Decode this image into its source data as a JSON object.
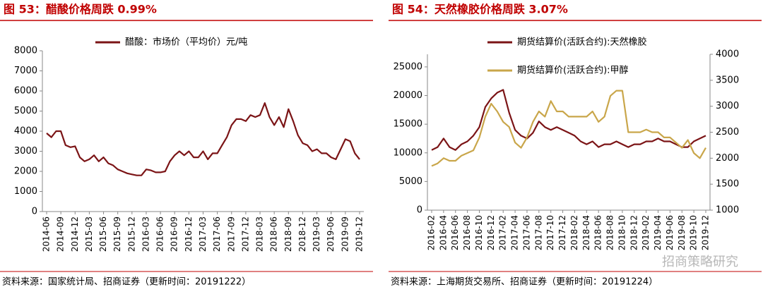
{
  "chart_data": [
    {
      "type": "line",
      "title": "图 53：醋酸价格周跌 0.99%",
      "source": "资料来源：国家统计局、招商证券（更新时间：20191222）",
      "categories": [
        "2014-06",
        null,
        null,
        "2014-09",
        null,
        null,
        "2014-12",
        null,
        null,
        "2015-03",
        null,
        null,
        "2015-06",
        null,
        null,
        "2015-09",
        null,
        null,
        "2015-12",
        null,
        null,
        "2016-03",
        null,
        null,
        "2016-06",
        null,
        null,
        "2016-09",
        null,
        null,
        "2016-12",
        null,
        null,
        "2017-03",
        null,
        null,
        "2017-06",
        null,
        null,
        "2017-09",
        null,
        null,
        "2017-12",
        null,
        null,
        "2018-03",
        null,
        null,
        "2018-06",
        null,
        null,
        "2018-09",
        null,
        null,
        "2018-12",
        null,
        null,
        "2019-03",
        null,
        null,
        "2019-06",
        null,
        null,
        "2019-09",
        null,
        null,
        "2019-12"
      ],
      "series": [
        {
          "name": "醋酸：市场价（平均价）元/吨",
          "color": "#7b1416",
          "values": [
            3900,
            3700,
            4000,
            4000,
            3300,
            3200,
            3250,
            2700,
            2500,
            2600,
            2800,
            2500,
            2700,
            2400,
            2300,
            2100,
            2000,
            1900,
            1850,
            1800,
            1800,
            2100,
            2050,
            1950,
            1950,
            2000,
            2500,
            2800,
            3000,
            2800,
            3000,
            2700,
            2700,
            3000,
            2600,
            2900,
            2900,
            3300,
            3700,
            4300,
            4600,
            4600,
            4500,
            4800,
            4700,
            4800,
            5400,
            4700,
            4300,
            4700,
            4200,
            5100,
            4500,
            3800,
            3400,
            3300,
            3000,
            3100,
            2900,
            2900,
            2700,
            2600,
            3100,
            3600,
            3500,
            2900,
            2600
          ]
        }
      ],
      "ylim": [
        0,
        8000
      ],
      "yticks": [
        0,
        1000,
        2000,
        3000,
        4000,
        5000,
        6000,
        7000,
        8000
      ],
      "grid": false
    },
    {
      "type": "line",
      "title": "图 54：天然橡胶价格周跌 3.07%",
      "source": "资料来源：上海期货交易所、招商证券（更新时间：20191224）",
      "watermark": "招商策略研究",
      "categories": [
        "2016-02",
        null,
        "2016-04",
        null,
        "2016-06",
        null,
        "2016-08",
        null,
        "2016-10",
        null,
        "2016-12",
        null,
        "2017-02",
        null,
        "2017-04",
        null,
        "2017-06",
        null,
        "2017-08",
        null,
        "2017-10",
        null,
        "2017-12",
        null,
        "2018-02",
        null,
        "2018-04",
        null,
        "2018-06",
        null,
        "2018-08",
        null,
        "2018-10",
        null,
        "2018-12",
        null,
        "2019-02",
        null,
        "2019-04",
        null,
        "2019-06",
        null,
        "2019-08",
        null,
        "2019-10",
        null,
        "2019-12"
      ],
      "series": [
        {
          "name": "期货结算价(活跃合约):天然橡胶",
          "color": "#7b1416",
          "values": [
            10500,
            11000,
            12500,
            11000,
            10500,
            11500,
            12000,
            13000,
            14500,
            18000,
            19500,
            20500,
            21000,
            17000,
            14000,
            13000,
            12500,
            13500,
            15500,
            14500,
            14000,
            14500,
            14000,
            13500,
            13000,
            12000,
            11500,
            12000,
            11000,
            11500,
            11500,
            12000,
            11500,
            11000,
            11500,
            11500,
            12000,
            12000,
            12500,
            12000,
            12000,
            11500,
            11000,
            11000,
            12000,
            12500,
            13000
          ]
        },
        {
          "name": "期货结算价(活跃合约):甲醇",
          "color": "#c9a64a",
          "axis": "y2",
          "values": [
            1850,
            1900,
            2000,
            1950,
            1950,
            2050,
            2100,
            2150,
            2400,
            2800,
            3050,
            2900,
            2700,
            2600,
            2300,
            2200,
            2400,
            2700,
            2900,
            2800,
            3100,
            2900,
            2900,
            2800,
            2800,
            2800,
            2800,
            2900,
            2700,
            2800,
            3200,
            3300,
            3300,
            2500,
            2500,
            2500,
            2550,
            2500,
            2500,
            2400,
            2400,
            2300,
            2200,
            2350,
            2100,
            2000,
            2200
          ]
        }
      ],
      "ylim": [
        0,
        27200
      ],
      "yticks": [
        0,
        5000,
        10000,
        15000,
        20000,
        25000
      ],
      "y2lim": [
        1000,
        4000
      ],
      "y2ticks": [
        1000,
        1500,
        2000,
        2500,
        3000,
        3500,
        4000
      ],
      "grid": false
    }
  ]
}
